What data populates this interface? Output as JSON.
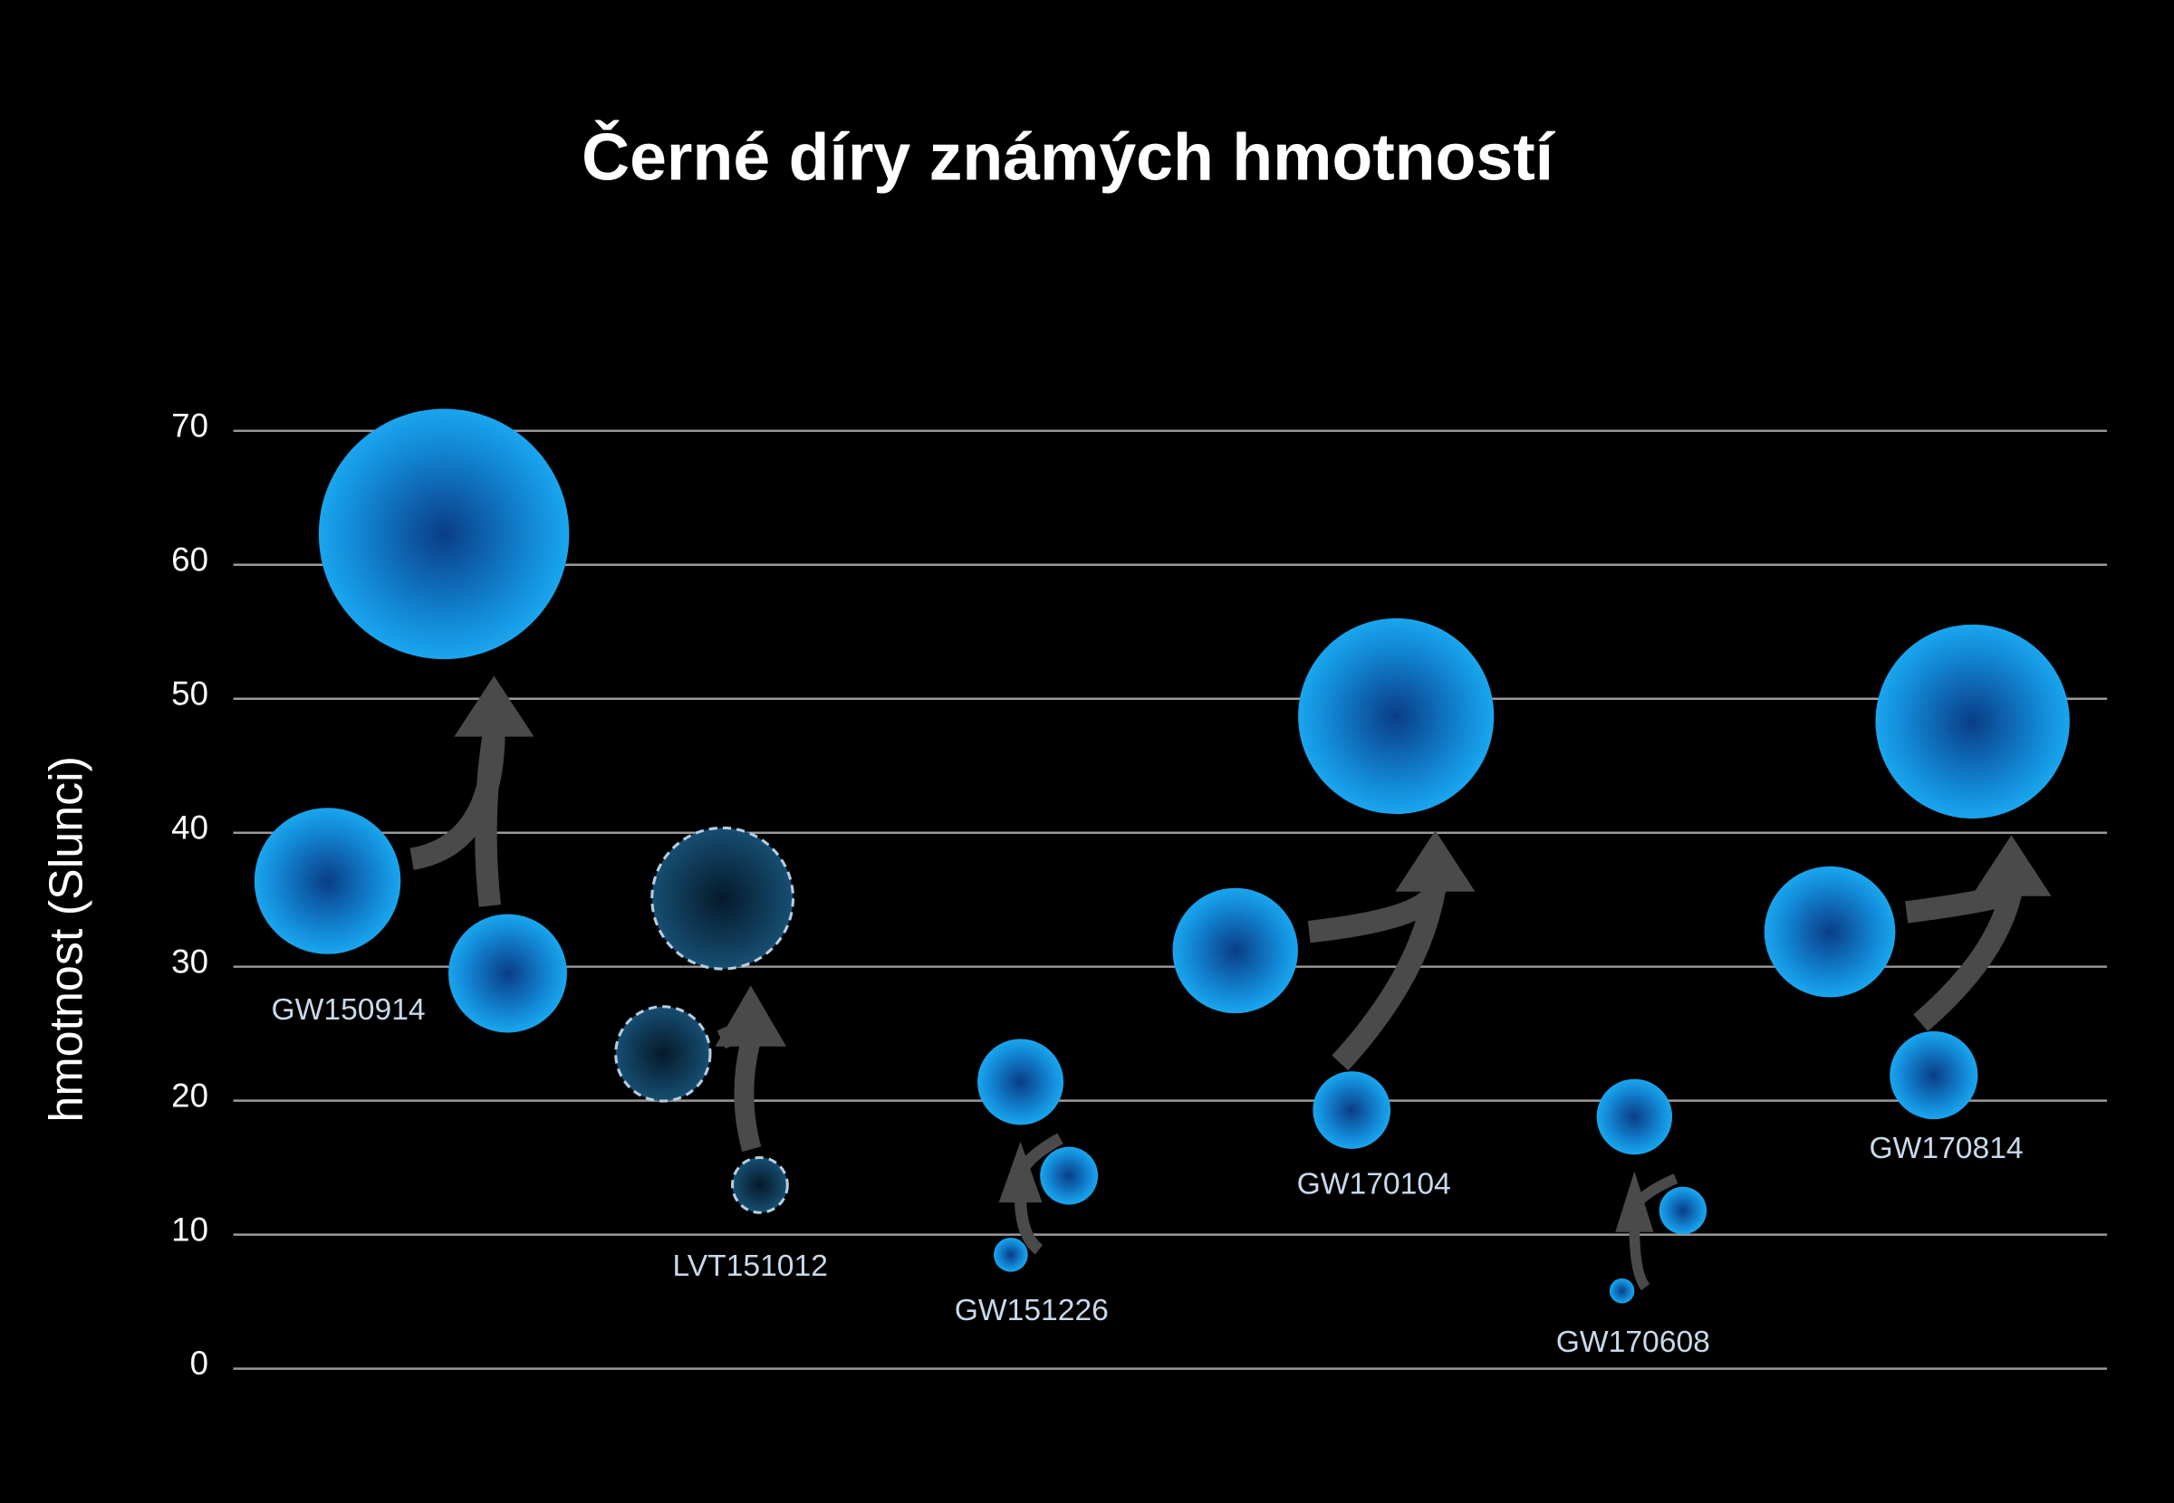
{
  "chart_data": {
    "type": "bubble",
    "title": "Černé díry známých hmotností",
    "ylabel": "hmotnost (Slunci)",
    "ylim": [
      0,
      70
    ],
    "yticks": [
      0,
      10,
      20,
      30,
      40,
      50,
      60,
      70
    ],
    "grid": true,
    "color": "#1aa0e8",
    "events": [
      {
        "name": "GW150914",
        "primary": 36.4,
        "secondary": 29.5,
        "final": 62.3
      },
      {
        "name": "LVT151012",
        "primary": 23.5,
        "secondary": 13.7,
        "final": 35.1,
        "outline": "dashed"
      },
      {
        "name": "GW151226",
        "primary": 14.4,
        "secondary": 8.5,
        "final": 21.4
      },
      {
        "name": "GW170104",
        "primary": 31.2,
        "secondary": 19.3,
        "final": 48.7
      },
      {
        "name": "GW170608",
        "primary": 11.8,
        "secondary": 5.8,
        "final": 18.8
      },
      {
        "name": "GW170814",
        "primary": 32.6,
        "secondary": 21.9,
        "final": 48.3
      }
    ]
  }
}
